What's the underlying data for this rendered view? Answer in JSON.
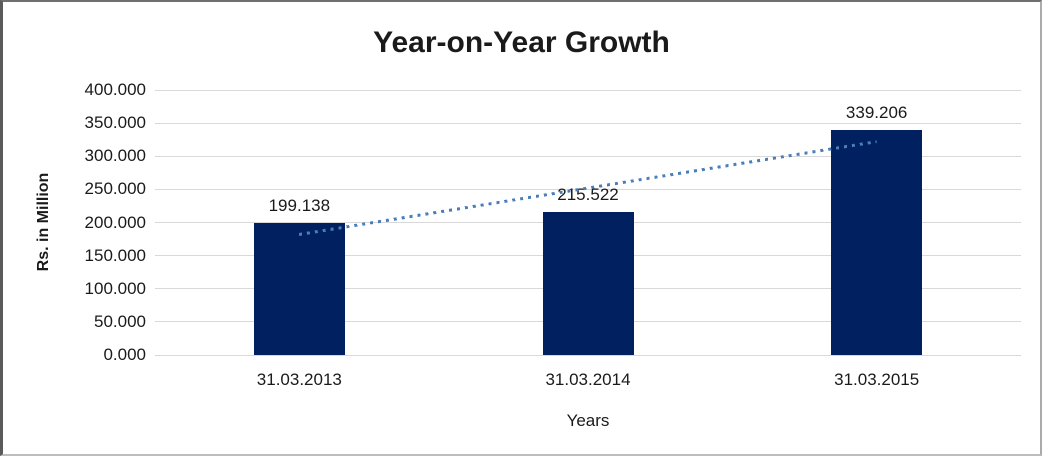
{
  "chart_data": {
    "type": "bar",
    "title": "Year-on-Year Growth",
    "xlabel": "Years",
    "ylabel": "Rs. in Million",
    "categories": [
      "31.03.2013",
      "31.03.2014",
      "31.03.2015"
    ],
    "values": [
      199.138,
      215.522,
      339.206
    ],
    "data_labels": [
      "199.138",
      "215.522",
      "339.206"
    ],
    "ylim": [
      0,
      400
    ],
    "ytick_step": 50,
    "ytick_labels": [
      "0.000",
      "50.000",
      "100.000",
      "150.000",
      "200.000",
      "250.000",
      "300.000",
      "350.000",
      "400.000"
    ],
    "grid": true,
    "legend_position": "none",
    "bar_color": "#002060",
    "gridline_color": "#d9d9d9",
    "trendline": {
      "type": "linear",
      "style": "dotted",
      "color": "#4a7ebb"
    }
  }
}
